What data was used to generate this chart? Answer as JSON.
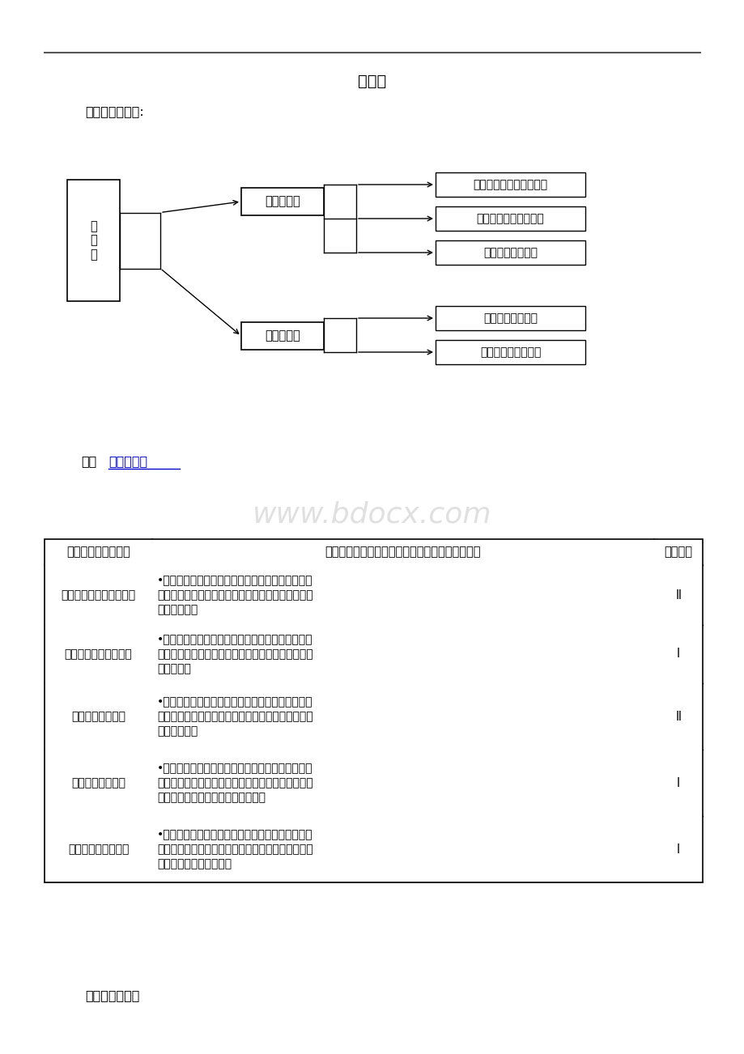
{
  "title": "传感器",
  "section1": "一、内容结构图:",
  "section2_prefix": "二、",
  "section2_link": "知识点列表",
  "section3": "三、重难点分析",
  "watermark": "www.bdocx.com",
  "diagram": {
    "root_label": "传\n感\n器",
    "mid_nodes": [
      "认识传感器",
      "传感器应用"
    ],
    "leaf_nodes": [
      "常见传感器的种类、型号",
      "常见传感器的电路图形",
      "常见传感器的检测",
      "常见传感器的作用",
      "常见传感器典型应用"
    ]
  },
  "table_headers": [
    "学习结果（知识点）",
    "指标（当学生获得这种学习结果时，他们能够：）",
    "表现水平"
  ],
  "table_rows": [
    {
      "col1": "常见传感器的种类、型号",
      "col2": "•能从外形和标识上识别光敏传感器、热敏传感器、\n湿敏传感器、声敏传感器、力敏传感器、气敏传感器\n等常见传感器",
      "col3": "Ⅱ"
    },
    {
      "col1": "常见传感器的电路图形",
      "col2": "•熟悉光敏传感器、热敏传感器、湿敏传感器、声敏\n传感器、力敏传感器、气敏传感器等常见传感器的电\n路图形符号",
      "col3": "Ⅰ"
    },
    {
      "col1": "常见传感器的检测",
      "col2": "•能用多用电表检测光敏传感器、热敏传感器、湿敏\n传感器、声敏传感器、力敏传感器等常见传感器的特\n性并判断好坏",
      "col3": "Ⅱ"
    },
    {
      "col1": "常见传感器的作用",
      "col2": "•知道光敏传感器、热敏传感器、湿敏传感器、声敏\n传感器、力敏传感器、气敏传感器等常见传感器的物\n理信息采集和电信号转换原理和作用",
      "col3": "Ⅰ"
    },
    {
      "col1": "常见传感器典型应用",
      "col2": "•举例说明光敏传感器、热敏传感器、湿敏传感器、\n声敏传感器、力敏传感器、气敏传感器等常见传感器\n在自动控制系统中的应用",
      "col3": "Ⅰ"
    }
  ],
  "background_color": "#ffffff",
  "text_color": "#000000",
  "link_color": "#0000cc",
  "border_color": "#000000",
  "watermark_color": "#cccccc",
  "line_color": "#555555"
}
